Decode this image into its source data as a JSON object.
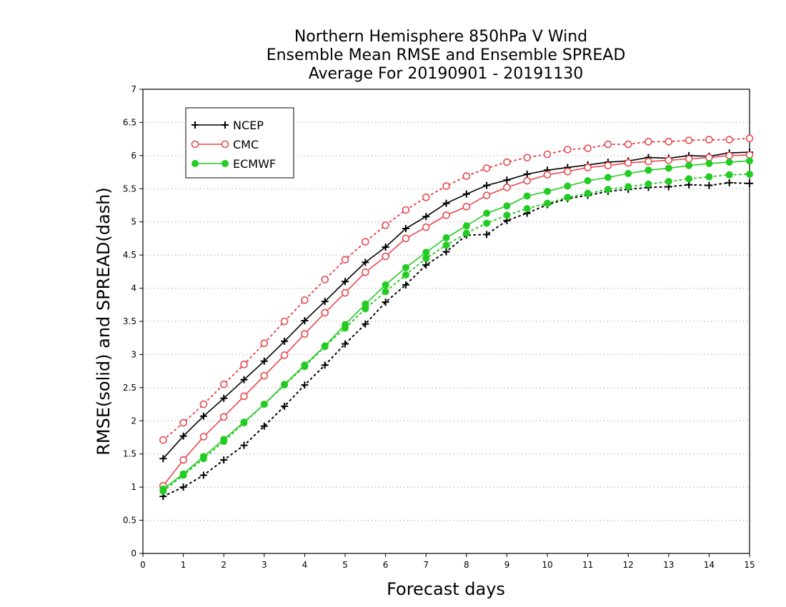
{
  "chart_data": {
    "type": "line",
    "title_lines": [
      "Northern Hemisphere 850hPa V Wind",
      "Ensemble Mean RMSE and Ensemble SPREAD",
      "Average For 20190901 - 20191130"
    ],
    "xlabel": "Forecast days",
    "ylabel": "RMSE(solid) and SPREAD(dash)",
    "xlim": [
      0,
      15
    ],
    "ylim": [
      0,
      7
    ],
    "xticks": [
      0,
      1,
      2,
      3,
      4,
      5,
      6,
      7,
      8,
      9,
      10,
      11,
      12,
      13,
      14,
      15
    ],
    "yticks": [
      0,
      0.5,
      1,
      1.5,
      2,
      2.5,
      3,
      3.5,
      4,
      4.5,
      5,
      5.5,
      6,
      6.5,
      7
    ],
    "ytick_labels": [
      "0",
      "0.5",
      "1",
      "1.5",
      "2",
      "2.5",
      "3",
      "3.5",
      "4",
      "4.5",
      "5",
      "5.5",
      "6",
      "6.5",
      "7"
    ],
    "grid": "horizontal dotted",
    "legend_position": "top-left",
    "x": [
      0.5,
      1,
      1.5,
      2,
      2.5,
      3,
      3.5,
      4,
      4.5,
      5,
      5.5,
      6,
      6.5,
      7,
      7.5,
      8,
      8.5,
      9,
      9.5,
      10,
      10.5,
      11,
      11.5,
      12,
      12.5,
      13,
      13.5,
      14,
      14.5,
      15
    ],
    "series": [
      {
        "name": "NCEP",
        "color": "#000000",
        "marker": "plus",
        "rmse": [
          1.43,
          1.77,
          2.07,
          2.34,
          2.62,
          2.9,
          3.2,
          3.51,
          3.8,
          4.1,
          4.39,
          4.62,
          4.9,
          5.08,
          5.28,
          5.42,
          5.55,
          5.63,
          5.72,
          5.78,
          5.82,
          5.86,
          5.9,
          5.92,
          5.97,
          5.96,
          6.0,
          5.99,
          6.04,
          6.05
        ],
        "spread": [
          0.86,
          1.0,
          1.18,
          1.41,
          1.63,
          1.92,
          2.22,
          2.54,
          2.84,
          3.16,
          3.46,
          3.79,
          4.05,
          4.35,
          4.55,
          4.8,
          4.81,
          5.02,
          5.13,
          5.26,
          5.35,
          5.4,
          5.46,
          5.49,
          5.52,
          5.53,
          5.56,
          5.55,
          5.59,
          5.58
        ]
      },
      {
        "name": "CMC",
        "color": "#e8484f",
        "marker": "circle-open",
        "rmse": [
          1.02,
          1.41,
          1.76,
          2.06,
          2.37,
          2.68,
          2.99,
          3.31,
          3.63,
          3.93,
          4.24,
          4.48,
          4.75,
          4.92,
          5.1,
          5.23,
          5.4,
          5.52,
          5.62,
          5.71,
          5.76,
          5.82,
          5.85,
          5.89,
          5.91,
          5.93,
          5.95,
          5.97,
          6.0,
          6.01
        ],
        "spread": [
          1.71,
          1.97,
          2.25,
          2.55,
          2.85,
          3.17,
          3.5,
          3.82,
          4.13,
          4.43,
          4.7,
          4.95,
          5.18,
          5.37,
          5.54,
          5.69,
          5.81,
          5.9,
          5.97,
          6.02,
          6.09,
          6.11,
          6.17,
          6.17,
          6.21,
          6.21,
          6.23,
          6.24,
          6.24,
          6.26
        ]
      },
      {
        "name": "ECMWF",
        "color": "#22cc22",
        "marker": "circle-filled",
        "rmse": [
          0.97,
          1.2,
          1.46,
          1.72,
          1.98,
          2.25,
          2.55,
          2.84,
          3.13,
          3.45,
          3.76,
          4.05,
          4.31,
          4.54,
          4.76,
          4.94,
          5.13,
          5.24,
          5.39,
          5.46,
          5.54,
          5.62,
          5.67,
          5.73,
          5.78,
          5.81,
          5.85,
          5.88,
          5.9,
          5.92
        ],
        "spread": [
          0.94,
          1.18,
          1.43,
          1.69,
          1.97,
          2.25,
          2.54,
          2.82,
          3.12,
          3.4,
          3.69,
          3.95,
          4.2,
          4.45,
          4.65,
          4.83,
          4.98,
          5.1,
          5.2,
          5.28,
          5.37,
          5.43,
          5.49,
          5.53,
          5.57,
          5.61,
          5.65,
          5.68,
          5.71,
          5.72
        ]
      }
    ]
  }
}
